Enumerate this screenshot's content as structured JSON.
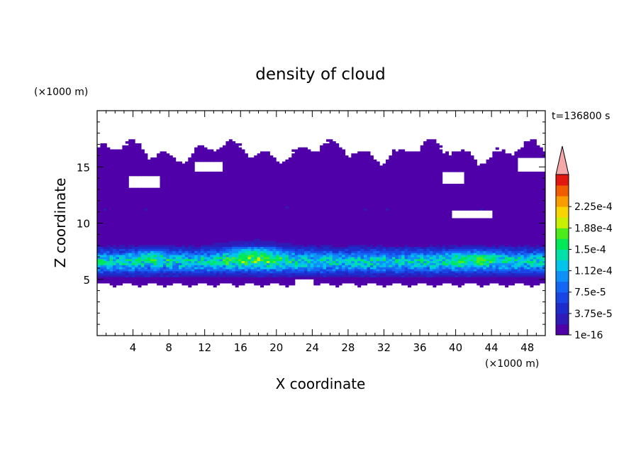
{
  "chart_data": {
    "type": "heatmap",
    "title": "density of cloud",
    "xlabel": "X coordinate",
    "ylabel": "Z coordinate",
    "x_unit": "(×1000 m)",
    "y_unit": "(×1000 m)",
    "time_label": "t=136800 s",
    "xlim": [
      0,
      50
    ],
    "ylim": [
      0,
      20
    ],
    "x_ticks": [
      4,
      8,
      12,
      16,
      20,
      24,
      28,
      32,
      36,
      40,
      44,
      48
    ],
    "y_ticks": [
      5,
      10,
      15
    ],
    "x_tick_labels": [
      "4",
      "8",
      "12",
      "16",
      "20",
      "24",
      "28",
      "32",
      "36",
      "40",
      "44",
      "48"
    ],
    "y_tick_labels": [
      "5",
      "10",
      "15"
    ],
    "colorbar": {
      "levels": [
        1e-16,
        1.875e-05,
        3.75e-05,
        5.625e-05,
        7.5e-05,
        9.375e-05,
        0.0001125,
        0.00013125,
        0.00015,
        0.00016875,
        0.0001875,
        0.00020625,
        0.000225,
        0.00024375
      ],
      "colors": [
        "#5000a8",
        "#2f1bb8",
        "#1f2ccc",
        "#1845e4",
        "#1466f4",
        "#0f90f8",
        "#00c4ec",
        "#00e0a8",
        "#00e858",
        "#4cec1c",
        "#c8f000",
        "#f8d400",
        "#f89c00",
        "#f05c00",
        "#e01810"
      ],
      "extend_color": "#f4a8a8",
      "labels": [
        "1e-16",
        "3.75e-5",
        "7.5e-5",
        "1.12e-4",
        "1.5e-4",
        "1.88e-4",
        "2.25e-4"
      ]
    },
    "features": {
      "cloud_base_km": 4.5,
      "cloud_top_km": 17.0,
      "peak_value": 0.00017,
      "peak_location_x_km": 17.5,
      "peak_location_z_km": 7.5
    }
  }
}
